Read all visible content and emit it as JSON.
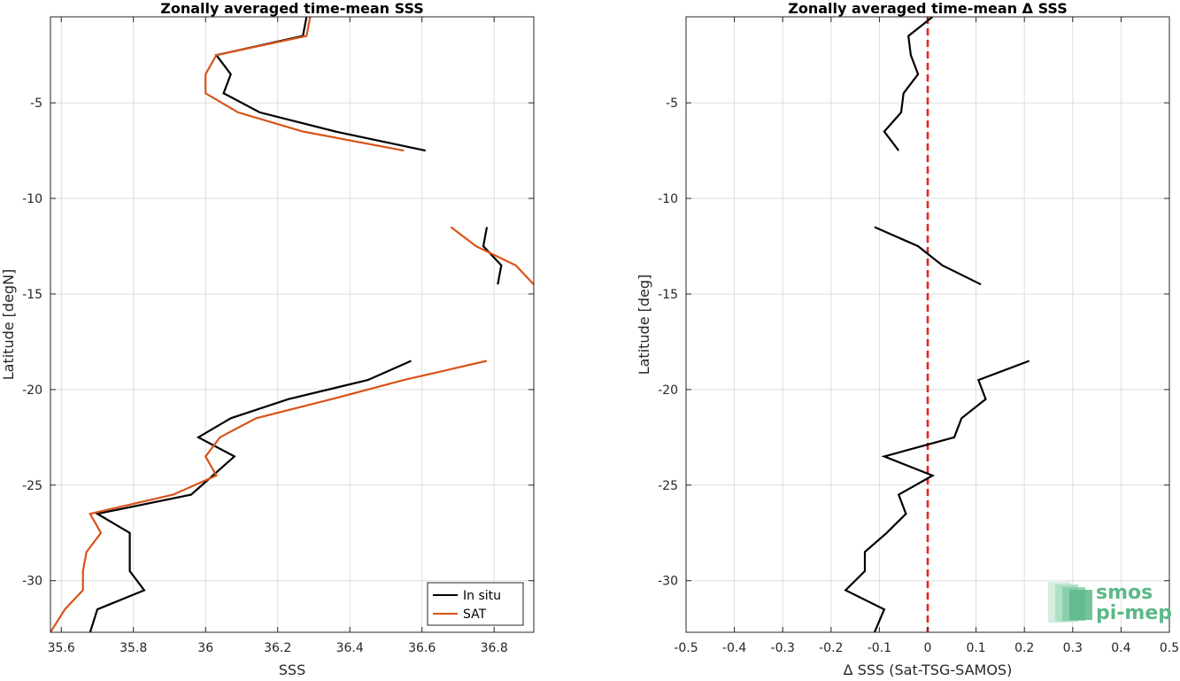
{
  "chart_data": [
    {
      "type": "line",
      "title": "Zonally averaged time-mean SSS",
      "xlabel": "SSS",
      "ylabel": "Latitude [degN]",
      "xlim": [
        35.57,
        36.91
      ],
      "ylim": [
        -32.7,
        -0.5
      ],
      "xticks": [
        35.6,
        35.8,
        36,
        36.2,
        36.4,
        36.6,
        36.8
      ],
      "xtick_labels": [
        "35.6",
        "35.8",
        "36",
        "36.2",
        "36.4",
        "36.6",
        "36.8"
      ],
      "yticks": [
        -5,
        -10,
        -15,
        -20,
        -25,
        -30
      ],
      "ytick_labels": [
        "-5",
        "-10",
        "-15",
        "-20",
        "-25",
        "-30"
      ],
      "grid": true,
      "legend": {
        "position": "bottom-right",
        "entries": [
          "In situ",
          "SAT"
        ]
      },
      "series": [
        {
          "name": "In situ",
          "color": "#000000",
          "segments": [
            [
              [
                36.28,
                -0.5
              ],
              [
                36.27,
                -1.5
              ],
              [
                36.03,
                -2.5
              ],
              [
                36.07,
                -3.5
              ],
              [
                36.05,
                -4.5
              ],
              [
                36.15,
                -5.5
              ],
              [
                36.36,
                -6.5
              ],
              [
                36.61,
                -7.5
              ]
            ],
            [
              [
                36.78,
                -11.5
              ],
              [
                36.77,
                -12.5
              ],
              [
                36.82,
                -13.5
              ],
              [
                36.81,
                -14.5
              ]
            ],
            [
              [
                36.57,
                -18.5
              ],
              [
                36.45,
                -19.5
              ],
              [
                36.23,
                -20.5
              ],
              [
                36.07,
                -21.5
              ],
              [
                35.98,
                -22.5
              ],
              [
                36.08,
                -23.5
              ],
              [
                36.02,
                -24.5
              ],
              [
                35.96,
                -25.5
              ],
              [
                35.7,
                -26.5
              ],
              [
                35.79,
                -27.5
              ],
              [
                35.79,
                -28.5
              ],
              [
                35.79,
                -29.5
              ],
              [
                35.83,
                -30.5
              ],
              [
                35.7,
                -31.5
              ],
              [
                35.68,
                -32.7
              ]
            ]
          ]
        },
        {
          "name": "SAT",
          "color": "#d95319",
          "segments": [
            [
              [
                36.29,
                -0.5
              ],
              [
                36.28,
                -1.5
              ],
              [
                36.03,
                -2.5
              ],
              [
                36.0,
                -3.5
              ],
              [
                36.0,
                -4.5
              ],
              [
                36.09,
                -5.5
              ],
              [
                36.27,
                -6.5
              ],
              [
                36.55,
                -7.5
              ]
            ],
            [
              [
                36.68,
                -11.5
              ],
              [
                36.75,
                -12.5
              ],
              [
                36.86,
                -13.5
              ],
              [
                36.91,
                -14.5
              ]
            ],
            [
              [
                36.78,
                -18.5
              ],
              [
                36.55,
                -19.5
              ],
              [
                36.35,
                -20.5
              ],
              [
                36.14,
                -21.5
              ],
              [
                36.04,
                -22.5
              ],
              [
                36.0,
                -23.5
              ],
              [
                36.03,
                -24.5
              ],
              [
                35.91,
                -25.5
              ],
              [
                35.68,
                -26.5
              ],
              [
                35.71,
                -27.5
              ],
              [
                35.67,
                -28.5
              ],
              [
                35.66,
                -29.5
              ],
              [
                35.66,
                -30.5
              ],
              [
                35.61,
                -31.5
              ],
              [
                35.57,
                -32.7
              ]
            ]
          ]
        }
      ]
    },
    {
      "type": "line",
      "title": "Zonally averaged time-mean Δ SSS",
      "xlabel": "Δ SSS (Sat-TSG-SAMOS)",
      "ylabel": "Latitude [deg]",
      "xlim": [
        -0.5,
        0.5
      ],
      "ylim": [
        -32.7,
        -0.5
      ],
      "xticks": [
        -0.5,
        -0.4,
        -0.3,
        -0.2,
        -0.1,
        0,
        0.1,
        0.2,
        0.3,
        0.4,
        0.5
      ],
      "xtick_labels": [
        "-0.5",
        "-0.4",
        "-0.3",
        "-0.2",
        "-0.1",
        "0",
        "0.1",
        "0.2",
        "0.3",
        "0.4",
        "0.5"
      ],
      "yticks": [
        -5,
        -10,
        -15,
        -20,
        -25,
        -30
      ],
      "ytick_labels": [
        "-5",
        "-10",
        "-15",
        "-20",
        "-25",
        "-30"
      ],
      "grid": true,
      "zero_line": {
        "x": 0,
        "color": "#e8231f",
        "style": "dashed"
      },
      "series": [
        {
          "color": "#000000",
          "segments": [
            [
              [
                0.01,
                -0.5
              ],
              [
                -0.04,
                -1.5
              ],
              [
                -0.035,
                -2.5
              ],
              [
                -0.02,
                -3.5
              ],
              [
                -0.05,
                -4.5
              ],
              [
                -0.055,
                -5.5
              ],
              [
                -0.09,
                -6.5
              ],
              [
                -0.06,
                -7.5
              ]
            ],
            [
              [
                -0.11,
                -11.5
              ],
              [
                -0.02,
                -12.5
              ],
              [
                0.03,
                -13.5
              ],
              [
                0.11,
                -14.5
              ]
            ],
            [
              [
                0.21,
                -18.5
              ],
              [
                0.105,
                -19.5
              ],
              [
                0.12,
                -20.5
              ],
              [
                0.07,
                -21.5
              ],
              [
                0.055,
                -22.5
              ],
              [
                -0.09,
                -23.5
              ],
              [
                0.01,
                -24.5
              ],
              [
                -0.06,
                -25.5
              ],
              [
                -0.045,
                -26.5
              ],
              [
                -0.085,
                -27.5
              ],
              [
                -0.13,
                -28.5
              ],
              [
                -0.13,
                -29.5
              ],
              [
                -0.17,
                -30.5
              ],
              [
                -0.09,
                -31.5
              ],
              [
                -0.11,
                -32.7
              ]
            ]
          ]
        }
      ]
    }
  ],
  "logo": {
    "line1": "smos",
    "line2": "pi-mep",
    "color": "#5cb88a"
  }
}
